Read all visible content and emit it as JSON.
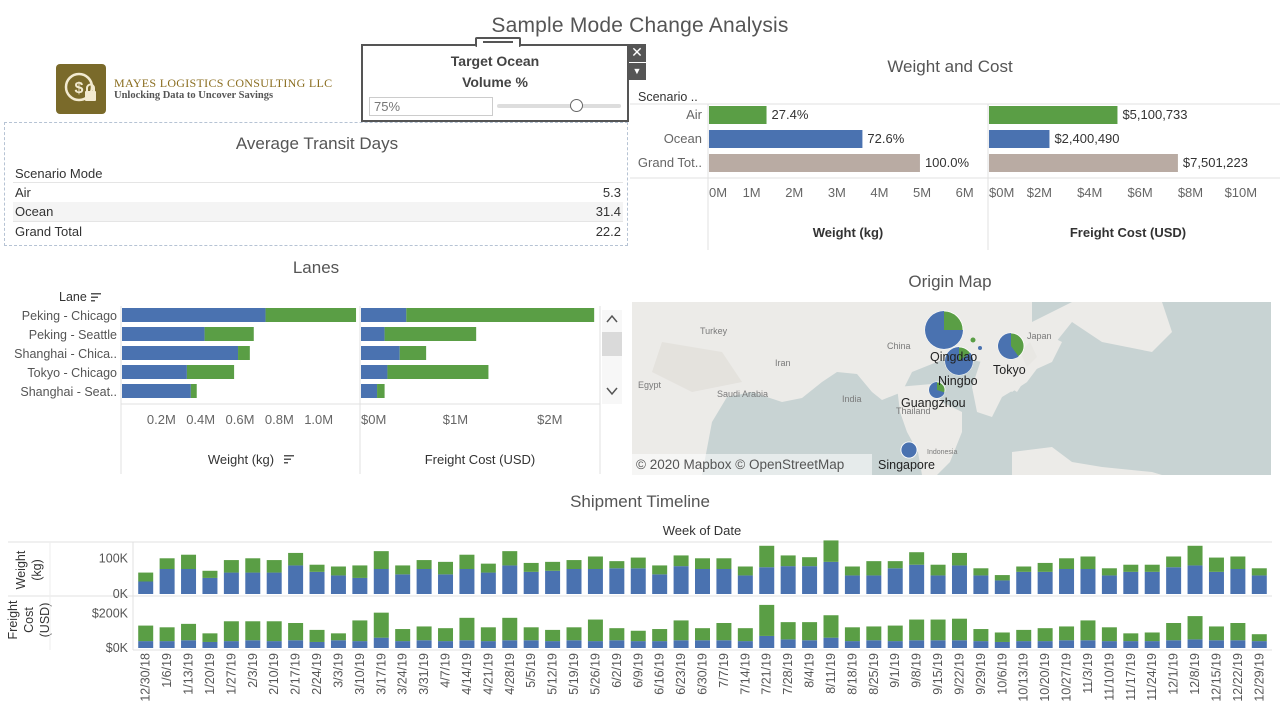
{
  "page": {
    "title": "Sample Mode Change Analysis"
  },
  "logo": {
    "line1": "MAYES LOGISTICS CONSULTING LLC",
    "line2": "Unlocking Data to Uncover Savings",
    "icon": "dollar-lock-icon"
  },
  "parameter": {
    "title_line1": "Target Ocean",
    "title_line2": "Volume %",
    "value": "75%",
    "fraction": 0.75
  },
  "transit": {
    "title": "Average Transit Days",
    "header": "Scenario Mode",
    "rows": [
      {
        "mode": "Air",
        "days": "5.3"
      },
      {
        "mode": "Ocean",
        "days": "31.4"
      },
      {
        "mode": "Grand Total",
        "days": "22.2"
      }
    ]
  },
  "weight_cost": {
    "title": "Weight and Cost",
    "header": "Scenario ..",
    "categories": [
      "Air",
      "Ocean",
      "Grand Tot.."
    ],
    "colors": {
      "air": "#5a9e45",
      "ocean": "#4a72b0",
      "total": "#b9aba3"
    },
    "weight": {
      "axis_label": "Weight (kg)",
      "max": 6.5,
      "ticks": [
        "0M",
        "1M",
        "2M",
        "3M",
        "4M",
        "5M",
        "6M"
      ],
      "tick_values": [
        0,
        1,
        2,
        3,
        4,
        5,
        6
      ],
      "values": [
        1.35,
        3.6,
        4.95
      ],
      "labels": [
        "27.4%",
        "72.6%",
        "100.0%"
      ]
    },
    "cost": {
      "axis_label": "Freight Cost (USD)",
      "max": 10.8,
      "ticks": [
        "$0M",
        "$2M",
        "$4M",
        "$6M",
        "$8M",
        "$10M"
      ],
      "tick_values": [
        0,
        2,
        4,
        6,
        8,
        10
      ],
      "values": [
        5.100733,
        2.40049,
        7.501223
      ],
      "labels": [
        "$5,100,733",
        "$2,400,490",
        "$7,501,223"
      ]
    }
  },
  "lanes": {
    "title": "Lanes",
    "header": "Lane",
    "names": [
      "Peking - Chicago",
      "Peking - Seattle",
      "Shanghai - Chica..",
      "Tokyo - Chicago",
      "Shanghai - Seat.."
    ],
    "weight": {
      "axis_label": "Weight (kg)",
      "max": 1.2,
      "ticks": [
        "0.2M",
        "0.4M",
        "0.6M",
        "0.8M",
        "1.0M"
      ],
      "tick_values": [
        0.2,
        0.4,
        0.6,
        0.8,
        1.0
      ],
      "ocean": [
        0.73,
        0.42,
        0.59,
        0.33,
        0.35
      ],
      "air": [
        0.46,
        0.25,
        0.06,
        0.24,
        0.03
      ]
    },
    "cost": {
      "axis_label": "Freight Cost (USD)",
      "max": 2.5,
      "ticks": [
        "$0M",
        "$1M",
        "$2M"
      ],
      "tick_values": [
        0,
        1,
        2
      ],
      "ocean": [
        0.48,
        0.25,
        0.41,
        0.28,
        0.17
      ],
      "air": [
        1.99,
        0.97,
        0.28,
        1.07,
        0.08
      ]
    }
  },
  "origin_map": {
    "title": "Origin Map",
    "attribution": "© 2020 Mapbox © OpenStreetMap",
    "country_labels": [
      "Turkey",
      "Iran",
      "China",
      "Japan",
      "Egypt",
      "Saudi Arabia",
      "India",
      "Thailand",
      "Indonesia"
    ],
    "cities": [
      {
        "name": "Qingdao",
        "ocean_share": 0.75
      },
      {
        "name": "Ningbo",
        "ocean_share": 0.85
      },
      {
        "name": "Tokyo",
        "ocean_share": 0.6
      },
      {
        "name": "Guangzhou",
        "ocean_share": 0.7
      },
      {
        "name": "Singapore",
        "ocean_share": 1.0
      }
    ]
  },
  "timeline": {
    "title": "Shipment Timeline",
    "x_header": "Week of Date",
    "weight_axis": {
      "label_line1": "Weight",
      "label_line2": "(kg)",
      "ticks": [
        "100K",
        "0K"
      ],
      "tick_values": [
        100,
        0
      ],
      "max": 140
    },
    "cost_axis": {
      "label_line1": "Freight",
      "label_line2": "Cost",
      "label_line3": "(USD)",
      "ticks": [
        "$200K",
        "$0K"
      ],
      "tick_values": [
        200,
        0
      ],
      "max": 290
    },
    "weeks": [
      "12/30/18",
      "1/6/19",
      "1/13/19",
      "1/20/19",
      "1/27/19",
      "2/3/19",
      "2/10/19",
      "2/17/19",
      "2/24/19",
      "3/3/19",
      "3/10/19",
      "3/17/19",
      "3/24/19",
      "3/31/19",
      "4/7/19",
      "4/14/19",
      "4/21/19",
      "4/28/19",
      "5/5/19",
      "5/12/19",
      "5/19/19",
      "5/26/19",
      "6/2/19",
      "6/9/19",
      "6/16/19",
      "6/23/19",
      "6/30/19",
      "7/7/19",
      "7/14/19",
      "7/21/19",
      "7/28/19",
      "8/4/19",
      "8/11/19",
      "8/18/19",
      "8/25/19",
      "9/1/19",
      "9/8/19",
      "9/15/19",
      "9/22/19",
      "9/29/19",
      "10/6/19",
      "10/13/19",
      "10/20/19",
      "10/27/19",
      "11/3/19",
      "11/10/19",
      "11/17/19",
      "11/24/19",
      "12/1/19",
      "12/8/19",
      "12/15/19",
      "12/22/19",
      "12/29/19"
    ],
    "weight_ocean": [
      35,
      70,
      70,
      45,
      60,
      60,
      60,
      80,
      62,
      52,
      45,
      70,
      55,
      70,
      55,
      70,
      60,
      80,
      62,
      65,
      70,
      70,
      72,
      72,
      55,
      78,
      70,
      70,
      52,
      75,
      78,
      78,
      90,
      52,
      52,
      72,
      82,
      52,
      80,
      52,
      38,
      62,
      62,
      70,
      70,
      52,
      62,
      62,
      75,
      80,
      62,
      70,
      52
    ],
    "weight_air": [
      25,
      30,
      40,
      20,
      35,
      40,
      35,
      35,
      20,
      25,
      35,
      50,
      25,
      25,
      35,
      40,
      25,
      40,
      25,
      25,
      25,
      35,
      20,
      30,
      25,
      30,
      30,
      30,
      25,
      60,
      30,
      25,
      60,
      25,
      40,
      20,
      35,
      30,
      35,
      20,
      15,
      15,
      25,
      30,
      35,
      20,
      20,
      20,
      30,
      55,
      40,
      35,
      20
    ],
    "cost_ocean": [
      40,
      40,
      45,
      35,
      40,
      45,
      40,
      45,
      35,
      45,
      40,
      60,
      40,
      45,
      40,
      45,
      40,
      45,
      45,
      40,
      45,
      40,
      45,
      40,
      40,
      45,
      45,
      45,
      40,
      70,
      50,
      45,
      60,
      40,
      45,
      40,
      45,
      45,
      45,
      40,
      35,
      40,
      40,
      45,
      45,
      40,
      40,
      40,
      45,
      50,
      45,
      45,
      40
    ],
    "cost_air": [
      90,
      80,
      95,
      50,
      115,
      110,
      115,
      100,
      70,
      40,
      120,
      145,
      70,
      80,
      75,
      130,
      80,
      130,
      75,
      65,
      75,
      125,
      70,
      60,
      70,
      115,
      70,
      100,
      75,
      180,
      100,
      105,
      130,
      80,
      80,
      90,
      120,
      120,
      125,
      70,
      55,
      65,
      75,
      80,
      115,
      80,
      45,
      50,
      100,
      135,
      80,
      100,
      40
    ],
    "colors": {
      "ocean": "#4a72b0",
      "air": "#5a9e45"
    }
  }
}
